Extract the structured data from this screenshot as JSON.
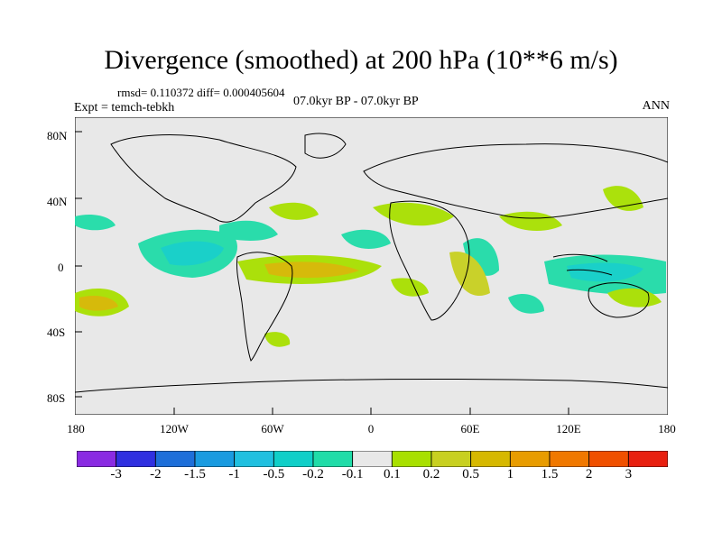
{
  "title": "Divergence (smoothed) at 200 hPa (10**6 m/s)",
  "stats": "rmsd= 0.110372 diff= 0.000405604",
  "expt": "Expt = temch-tebkh",
  "period": "07.0kyr BP - 07.0kyr BP",
  "season": "ANN",
  "lat_ticks": [
    "80N",
    "40N",
    "0",
    "40S",
    "80S"
  ],
  "lon_ticks": [
    "180",
    "120W",
    "60W",
    "0",
    "60E",
    "120E",
    "180"
  ],
  "colorbar": {
    "colors": [
      "#8a2be2",
      "#3030e0",
      "#1e6fd9",
      "#1a9be0",
      "#20c0e0",
      "#10cfc8",
      "#20dca8",
      "#e8e8e8",
      "#a8e000",
      "#c8d020",
      "#d6b800",
      "#e89c00",
      "#f07800",
      "#f05000",
      "#e82010"
    ],
    "labels": [
      "-3",
      "-2",
      "-1.5",
      "-1",
      "-0.5",
      "-0.2",
      "-0.1",
      "0.1",
      "0.2",
      "0.5",
      "1",
      "1.5",
      "2",
      "3"
    ]
  },
  "map_background": "#e8e8e8"
}
